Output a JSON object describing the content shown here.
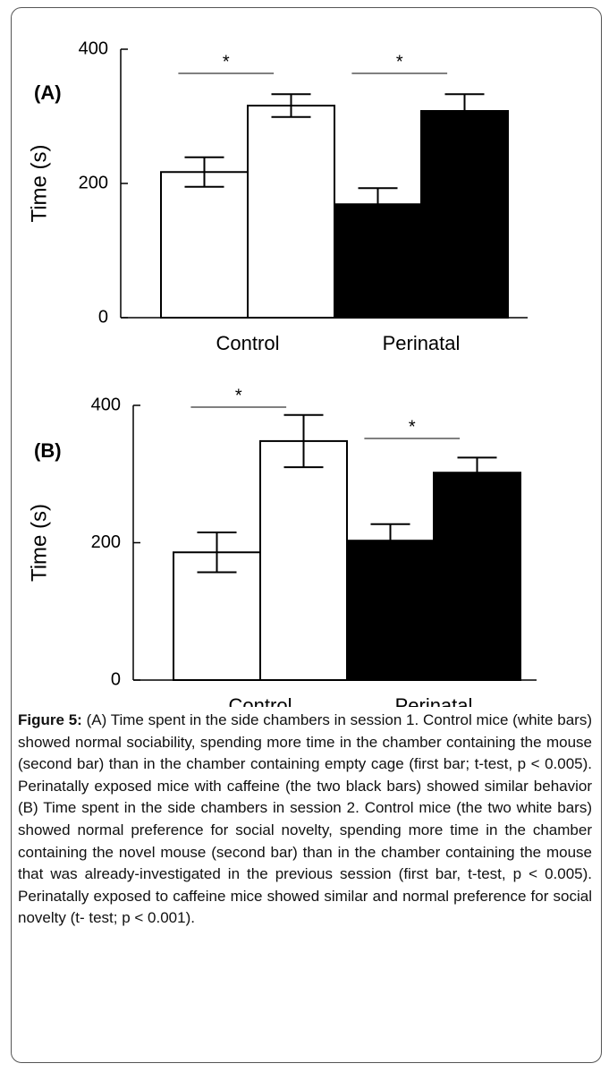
{
  "chart_data": [
    {
      "type": "bar",
      "panel": "(A)",
      "ylabel": "Time (s)",
      "categories": [
        "Control",
        "Perinatal"
      ],
      "group_colors": [
        "#ffffff",
        "#000000"
      ],
      "series": [
        {
          "values": [
            217,
            169
          ],
          "errors": [
            22,
            24
          ]
        },
        {
          "values": [
            316,
            308
          ],
          "errors": [
            17,
            25
          ]
        }
      ],
      "annotations": [
        "*",
        "*"
      ],
      "ylim": [
        0,
        400
      ],
      "yticks": [
        0,
        200,
        400
      ]
    },
    {
      "type": "bar",
      "panel": "(B)",
      "ylabel": "Time (s)",
      "categories": [
        "Control",
        "Perinatal"
      ],
      "group_colors": [
        "#ffffff",
        "#000000"
      ],
      "series": [
        {
          "values": [
            186,
            203
          ],
          "errors": [
            29,
            24
          ]
        },
        {
          "values": [
            348,
            302
          ],
          "errors": [
            38,
            22
          ]
        }
      ],
      "annotations": [
        "*",
        "*"
      ],
      "ylim": [
        0,
        400
      ],
      "yticks": [
        0,
        200,
        400
      ]
    }
  ],
  "caption": {
    "label": "Figure 5:",
    "text": "(A) Time spent in the side chambers in session 1. Control mice (white bars) showed normal sociability, spending more time in the chamber containing the mouse (second bar) than in the chamber containing empty cage (first bar; t-test, p < 0.005). Perinatally exposed mice with caffeine (the two black bars) showed similar behavior (B) Time spent in the side chambers in session 2. Control mice (the two white bars) showed normal preference for social novelty, spending more time in the chamber containing the novel mouse (second bar) than in the chamber containing the mouse that was already-investigated in the previous session (first bar, t-test, p < 0.005). Perinatally exposed to caffeine mice showed similar and normal preference for social novelty (t- test; p < 0.001)."
  }
}
